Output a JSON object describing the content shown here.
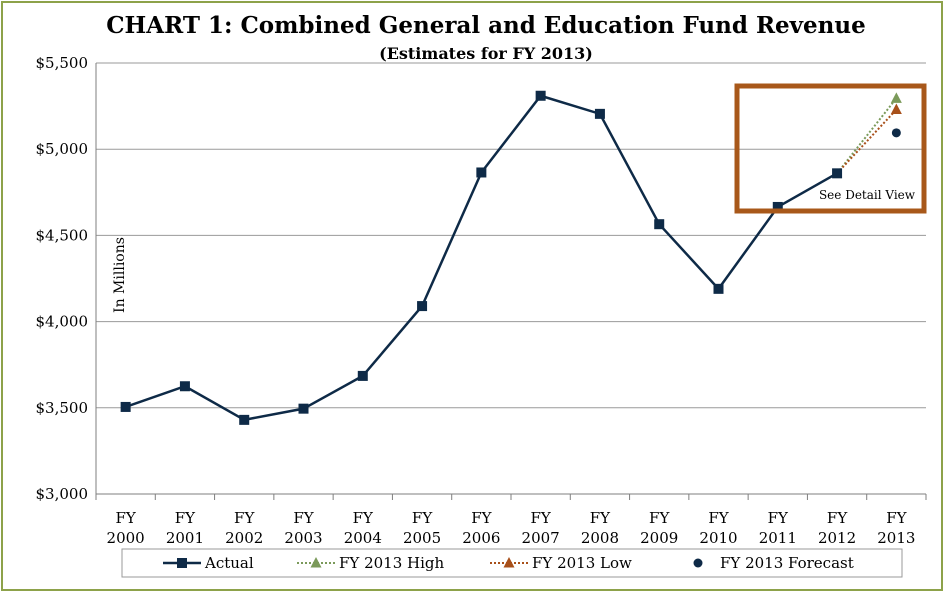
{
  "chart_data": {
    "type": "line",
    "title": "CHART 1: Combined General and Education Fund Revenue",
    "subtitle": "(Estimates for FY 2013)",
    "ylabel": "In Millions",
    "ylim": [
      3000,
      5500
    ],
    "yticks": [
      3000,
      3500,
      4000,
      4500,
      5000,
      5500
    ],
    "ytick_labels": [
      "$3,000",
      "$3,500",
      "$4,000",
      "$4,500",
      "$5,000",
      "$5,500"
    ],
    "grid": true,
    "categories": [
      [
        "FY",
        "2000"
      ],
      [
        "FY",
        "2001"
      ],
      [
        "FY",
        "2002"
      ],
      [
        "FY",
        "2003"
      ],
      [
        "FY",
        "2004"
      ],
      [
        "FY",
        "2005"
      ],
      [
        "FY",
        "2006"
      ],
      [
        "FY",
        "2007"
      ],
      [
        "FY",
        "2008"
      ],
      [
        "FY",
        "2009"
      ],
      [
        "FY",
        "2010"
      ],
      [
        "FY",
        "2011"
      ],
      [
        "FY",
        "2012"
      ],
      [
        "FY",
        "2013"
      ]
    ],
    "series": [
      {
        "name": "Actual",
        "color": "#0e2a47",
        "style": "solid",
        "marker": "square",
        "values": [
          3505,
          3625,
          3430,
          3495,
          3685,
          4090,
          4865,
          5310,
          5205,
          4565,
          4190,
          4665,
          4860,
          null
        ]
      },
      {
        "name": "FY 2013 High",
        "color": "#7b9a5a",
        "style": "dotted",
        "marker": "triangle",
        "from": [
          12,
          4860
        ],
        "to": [
          13,
          5295
        ]
      },
      {
        "name": "FY 2013 Low",
        "color": "#a8501a",
        "style": "dotted",
        "marker": "triangle",
        "from": [
          12,
          4860
        ],
        "to": [
          13,
          5230
        ]
      },
      {
        "name": "FY 2013 Forecast",
        "color": "#0e2a47",
        "style": "none",
        "marker": "circle",
        "point": [
          13,
          5095
        ]
      }
    ],
    "annotation": {
      "text": "See Detail View",
      "box_color": "#a8581a"
    },
    "legend_position": "bottom"
  }
}
